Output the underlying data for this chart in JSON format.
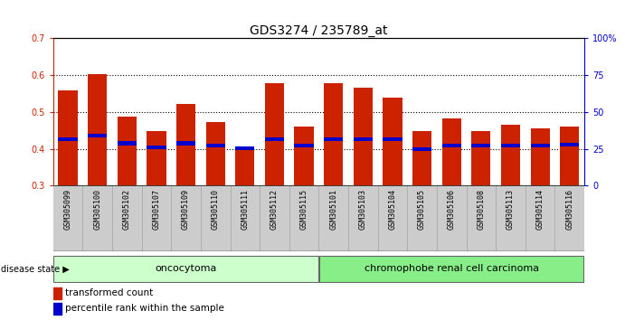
{
  "title": "GDS3274 / 235789_at",
  "samples": [
    "GSM305099",
    "GSM305100",
    "GSM305102",
    "GSM305107",
    "GSM305109",
    "GSM305110",
    "GSM305111",
    "GSM305112",
    "GSM305115",
    "GSM305101",
    "GSM305103",
    "GSM305104",
    "GSM305105",
    "GSM305106",
    "GSM305108",
    "GSM305113",
    "GSM305114",
    "GSM305116"
  ],
  "transformed_count": [
    0.558,
    0.603,
    0.488,
    0.448,
    0.522,
    0.473,
    0.4,
    0.578,
    0.46,
    0.578,
    0.565,
    0.538,
    0.448,
    0.482,
    0.447,
    0.465,
    0.455,
    0.46
  ],
  "percentile_rank": [
    0.425,
    0.435,
    0.415,
    0.405,
    0.415,
    0.408,
    0.402,
    0.425,
    0.408,
    0.427,
    0.425,
    0.425,
    0.4,
    0.41,
    0.408,
    0.41,
    0.408,
    0.412
  ],
  "bar_bottom": 0.3,
  "ylim": [
    0.3,
    0.7
  ],
  "yticks": [
    0.3,
    0.4,
    0.5,
    0.6,
    0.7
  ],
  "right_yticks": [
    0,
    25,
    50,
    75,
    100
  ],
  "right_ytick_labels": [
    "0",
    "25",
    "50",
    "75",
    "100%"
  ],
  "bar_color": "#CC2200",
  "percentile_color": "#0000CC",
  "oncocytoma_count": 9,
  "chromophobe_count": 9,
  "oncocytoma_label": "oncocytoma",
  "chromophobe_label": "chromophobe renal cell carcinoma",
  "disease_state_label": "disease state",
  "legend_transformed": "transformed count",
  "legend_percentile": "percentile rank within the sample",
  "bar_width": 0.65,
  "group_bg_oncocytoma": "#CCFFCC",
  "group_bg_chromophobe": "#88EE88",
  "tick_label_color_left": "#CC2200",
  "tick_label_color_right": "#0000CC",
  "title_fontsize": 10,
  "tick_fontsize": 7,
  "xtick_fontsize": 6,
  "label_fontsize": 7.5
}
